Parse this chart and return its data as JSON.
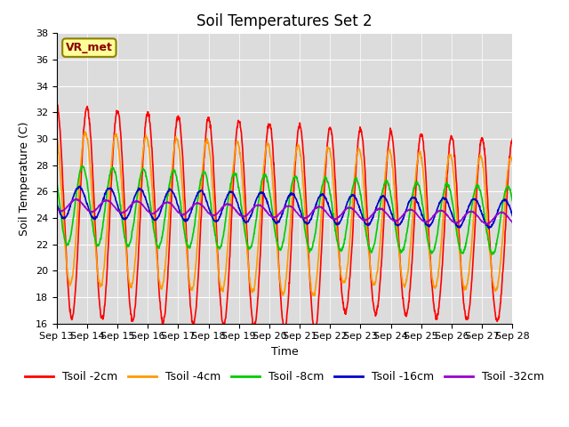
{
  "title": "Soil Temperatures Set 2",
  "xlabel": "Time",
  "ylabel": "Soil Temperature (C)",
  "ylim": [
    16,
    38
  ],
  "yticks": [
    16,
    18,
    20,
    22,
    24,
    26,
    28,
    30,
    32,
    34,
    36,
    38
  ],
  "x_tick_days": [
    13,
    14,
    15,
    16,
    17,
    18,
    19,
    20,
    21,
    22,
    23,
    24,
    25,
    26,
    27,
    28
  ],
  "colors": {
    "Tsoil -2cm": "#ff0000",
    "Tsoil -4cm": "#ff9900",
    "Tsoil -8cm": "#00cc00",
    "Tsoil -16cm": "#0000cc",
    "Tsoil -32cm": "#9900cc"
  },
  "background_color": "#dcdcdc",
  "annotation_text": "VR_met",
  "annotation_box_color": "#ffff99",
  "annotation_box_edge": "#8B8000",
  "title_fontsize": 12,
  "axis_label_fontsize": 9,
  "tick_fontsize": 8,
  "legend_fontsize": 9,
  "linewidth": 1.2,
  "num_days": 15,
  "ppd": 96,
  "base_mean": 24.5,
  "base_trend": -0.04,
  "amp_2cm_early": 6.5,
  "amp_2cm_late": 7.5,
  "amp_4cm_early": 5.5,
  "amp_4cm_late": 6.0,
  "amp_8cm_early": 3.0,
  "amp_8cm_late": 2.0,
  "amp_16cm": 1.2,
  "amp_32cm": 0.5,
  "phase_2cm": 1.57,
  "phase_4cm": 1.9,
  "phase_8cm": 2.5,
  "phase_16cm": 3.2,
  "phase_32cm": 3.8
}
